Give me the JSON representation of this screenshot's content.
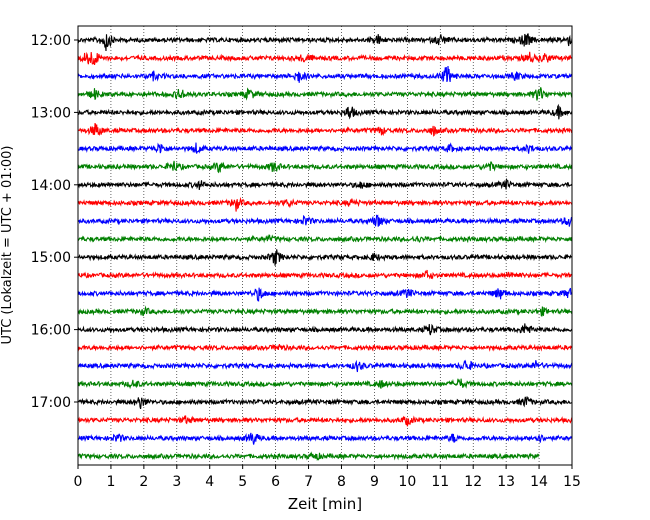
{
  "chart_data": {
    "type": "line",
    "title": "",
    "xlabel": "Zeit  [min]",
    "ylabel": "UTC (Lokalzeit = UTC + 01:00)",
    "xlim": [
      0,
      15
    ],
    "x_ticks": [
      "0",
      "1",
      "2",
      "3",
      "4",
      "5",
      "6",
      "7",
      "8",
      "9",
      "10",
      "11",
      "12",
      "13",
      "14",
      "15"
    ],
    "y_tick_labels": [
      "12:00",
      "13:00",
      "14:00",
      "15:00",
      "16:00",
      "17:00"
    ],
    "grid": "vertical dotted at each minute",
    "row_interval_min": 15,
    "first_row": "12:00",
    "last_row_end_min": 14.0,
    "colors": [
      "#000000",
      "#ff0000",
      "#0000ff",
      "#008000"
    ],
    "series": [
      {
        "start": "12:00",
        "color": "#000000",
        "events": [
          [
            0.85,
            1.0
          ],
          [
            9.1,
            0.45
          ],
          [
            11.0,
            0.55
          ],
          [
            13.6,
            0.75
          ],
          [
            14.9,
            0.4
          ]
        ]
      },
      {
        "start": "12:15",
        "color": "#ff0000",
        "events": [
          [
            0.3,
            0.7
          ],
          [
            0.5,
            0.55
          ],
          [
            6.9,
            0.45
          ],
          [
            13.7,
            0.5
          ],
          [
            14.2,
            0.45
          ]
        ]
      },
      {
        "start": "12:30",
        "color": "#0000ff",
        "events": [
          [
            2.3,
            0.35
          ],
          [
            6.7,
            0.6
          ],
          [
            11.2,
            1.0
          ],
          [
            13.3,
            0.35
          ]
        ]
      },
      {
        "start": "12:45",
        "color": "#008000",
        "events": [
          [
            0.5,
            0.45
          ],
          [
            3.1,
            0.55
          ],
          [
            5.2,
            0.5
          ],
          [
            14.0,
            0.75
          ]
        ]
      },
      {
        "start": "13:00",
        "color": "#000000",
        "events": [
          [
            8.25,
            0.7
          ],
          [
            14.6,
            0.5
          ]
        ]
      },
      {
        "start": "13:15",
        "color": "#ff0000",
        "events": [
          [
            0.55,
            0.75
          ],
          [
            9.2,
            0.35
          ],
          [
            10.8,
            0.4
          ]
        ]
      },
      {
        "start": "13:30",
        "color": "#0000ff",
        "events": [
          [
            2.5,
            0.45
          ],
          [
            3.6,
            0.45
          ],
          [
            11.3,
            0.3
          ],
          [
            13.7,
            0.35
          ]
        ]
      },
      {
        "start": "13:45",
        "color": "#008000",
        "events": [
          [
            2.9,
            0.5
          ],
          [
            4.3,
            0.5
          ],
          [
            5.95,
            0.5
          ],
          [
            12.5,
            0.4
          ]
        ]
      },
      {
        "start": "14:00",
        "color": "#000000",
        "events": [
          [
            3.7,
            0.35
          ],
          [
            8.6,
            0.3
          ],
          [
            13.0,
            0.35
          ]
        ]
      },
      {
        "start": "14:15",
        "color": "#ff0000",
        "events": [
          [
            4.8,
            0.6
          ],
          [
            6.4,
            0.3
          ],
          [
            8.3,
            0.3
          ]
        ]
      },
      {
        "start": "14:30",
        "color": "#0000ff",
        "events": [
          [
            6.9,
            0.45
          ],
          [
            9.1,
            0.6
          ],
          [
            14.9,
            0.5
          ]
        ]
      },
      {
        "start": "14:45",
        "color": "#008000",
        "events": [
          [
            5.8,
            0.2
          ],
          [
            10.3,
            0.2
          ]
        ]
      },
      {
        "start": "15:00",
        "color": "#000000",
        "events": [
          [
            6.0,
            0.75
          ],
          [
            9.0,
            0.3
          ]
        ]
      },
      {
        "start": "15:15",
        "color": "#ff0000",
        "events": [
          [
            10.6,
            0.35
          ],
          [
            13.2,
            0.3
          ]
        ]
      },
      {
        "start": "15:30",
        "color": "#0000ff",
        "events": [
          [
            5.5,
            0.65
          ],
          [
            10.0,
            0.4
          ],
          [
            12.8,
            0.55
          ],
          [
            14.9,
            0.45
          ]
        ]
      },
      {
        "start": "15:45",
        "color": "#008000",
        "events": [
          [
            2.0,
            0.3
          ],
          [
            14.1,
            0.3
          ]
        ]
      },
      {
        "start": "16:00",
        "color": "#000000",
        "events": [
          [
            10.7,
            0.5
          ],
          [
            13.6,
            0.6
          ]
        ]
      },
      {
        "start": "16:15",
        "color": "#ff0000",
        "events": [
          [
            6.1,
            0.25
          ]
        ]
      },
      {
        "start": "16:30",
        "color": "#0000ff",
        "events": [
          [
            8.5,
            0.45
          ],
          [
            11.8,
            0.6
          ],
          [
            13.9,
            0.35
          ]
        ]
      },
      {
        "start": "16:45",
        "color": "#008000",
        "events": [
          [
            1.7,
            0.35
          ],
          [
            9.2,
            0.3
          ],
          [
            11.6,
            0.45
          ]
        ]
      },
      {
        "start": "17:00",
        "color": "#000000",
        "events": [
          [
            1.9,
            0.55
          ],
          [
            13.6,
            0.5
          ]
        ]
      },
      {
        "start": "17:15",
        "color": "#ff0000",
        "events": [
          [
            3.3,
            0.3
          ],
          [
            10.0,
            0.4
          ]
        ]
      },
      {
        "start": "17:30",
        "color": "#0000ff",
        "events": [
          [
            1.2,
            0.4
          ],
          [
            5.3,
            0.65
          ],
          [
            11.4,
            0.35
          ],
          [
            14.0,
            0.35
          ]
        ]
      },
      {
        "start": "17:45",
        "color": "#008000",
        "events": [
          [
            7.2,
            0.35
          ]
        ]
      }
    ]
  }
}
